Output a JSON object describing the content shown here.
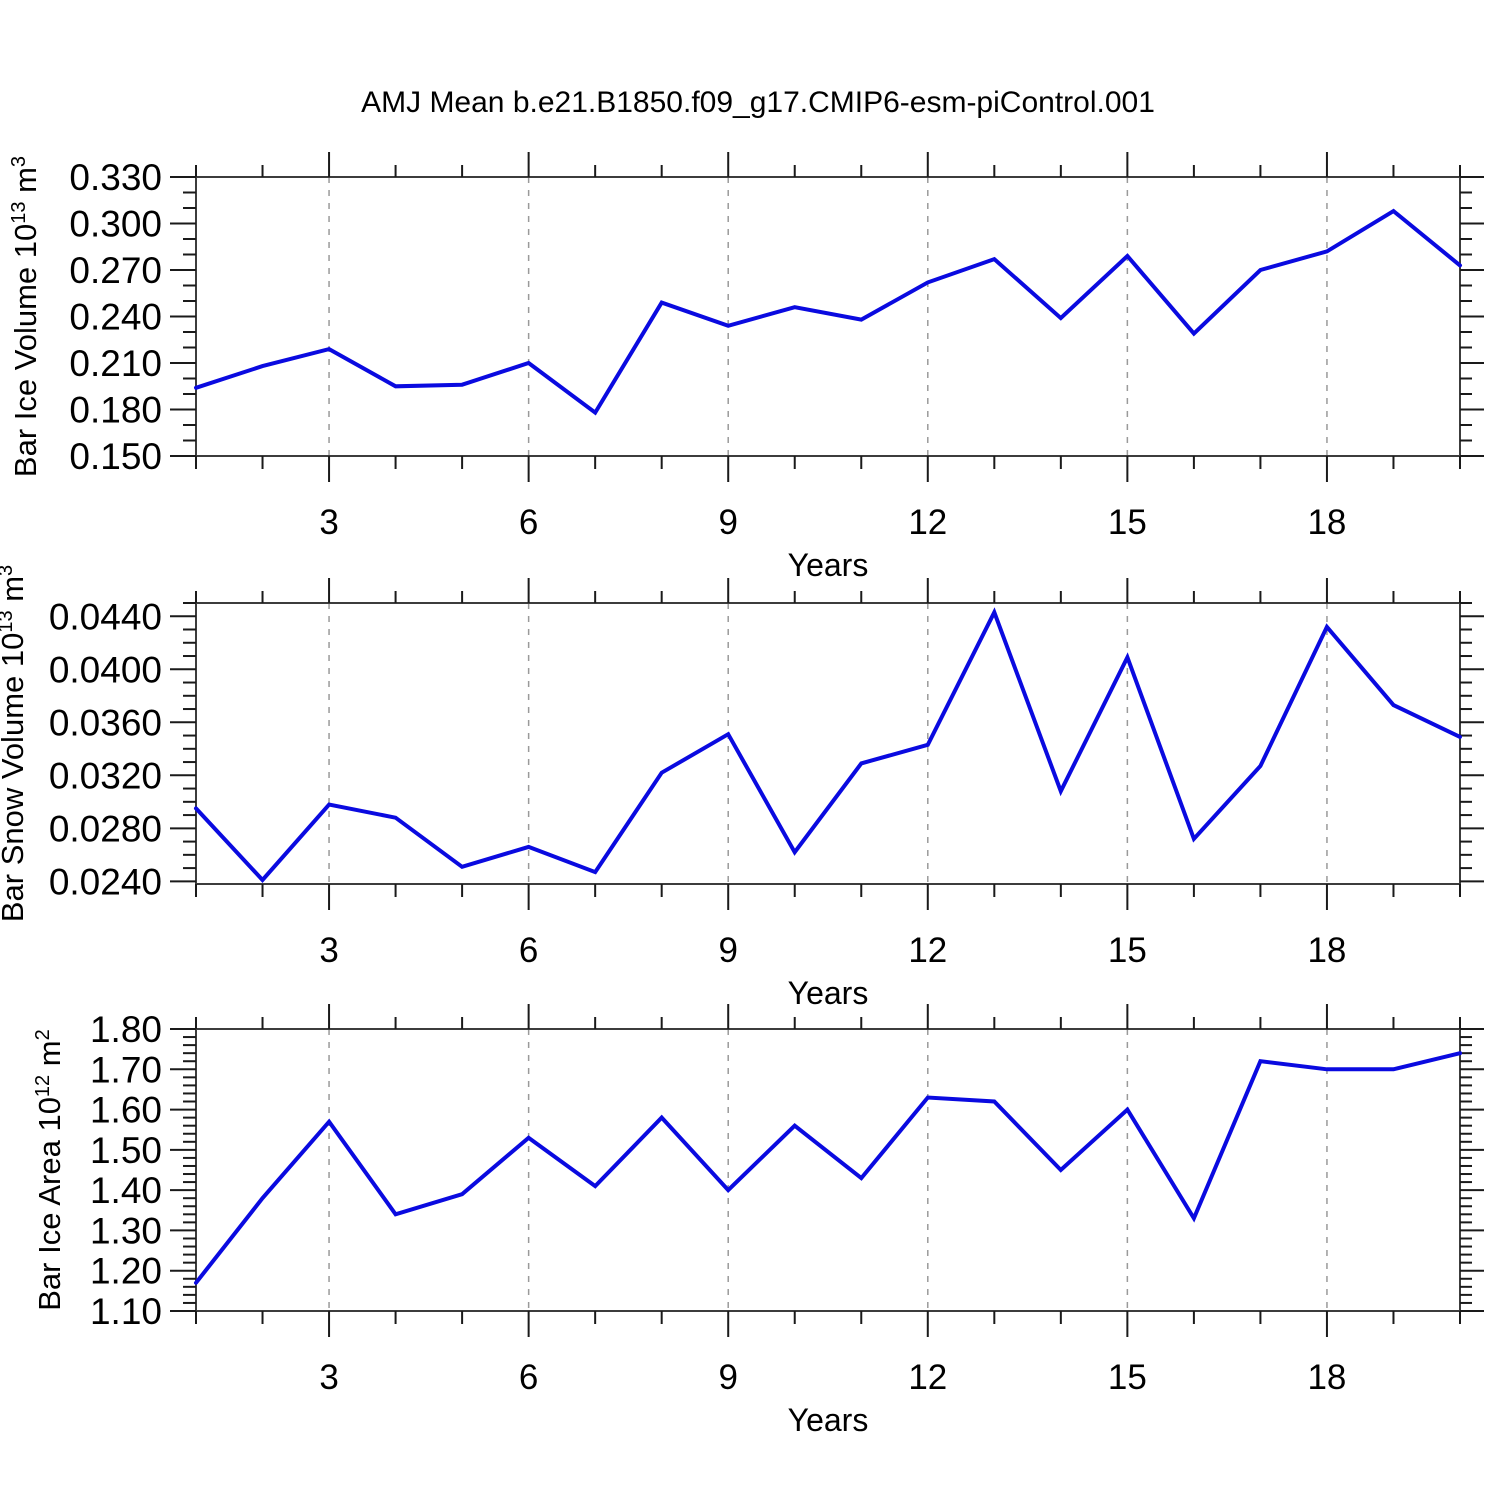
{
  "title": "AMJ Mean b.e21.B1850.f09_g17.CMIP6-esm-piControl.001",
  "accent_color": "#0a0ae0",
  "frame_color": "#3c3c3c",
  "tick_color": "#1a1a1a",
  "grid_color": "#9a9a9a",
  "chart_data": [
    {
      "type": "line",
      "name": "ice-volume",
      "ylabel": "Bar Ice Volume 10¹³ m³",
      "ylabel_parts": [
        {
          "t": "Bar Ice Volume 10"
        },
        {
          "t": "13",
          "sup": true
        },
        {
          "t": " m"
        },
        {
          "t": "3",
          "sup": true
        }
      ],
      "xlabel": "Years",
      "x": [
        1,
        2,
        3,
        4,
        5,
        6,
        7,
        8,
        9,
        10,
        11,
        12,
        13,
        14,
        15,
        16,
        17,
        18,
        19,
        20
      ],
      "values": [
        0.194,
        0.208,
        0.219,
        0.195,
        0.196,
        0.21,
        0.178,
        0.249,
        0.234,
        0.246,
        0.238,
        0.262,
        0.277,
        0.239,
        0.279,
        0.229,
        0.27,
        0.282,
        0.308,
        0.273
      ],
      "xlim": [
        1,
        20
      ],
      "ylim": [
        0.15,
        0.33
      ],
      "xticks": [
        3,
        6,
        9,
        12,
        15,
        18
      ],
      "xtick_labels": [
        "3",
        "6",
        "9",
        "12",
        "15",
        "18"
      ],
      "xminor_step": 1,
      "yticks": [
        0.15,
        0.18,
        0.21,
        0.24,
        0.27,
        0.3,
        0.33
      ],
      "ytick_labels": [
        "0.150",
        "0.180",
        "0.210",
        "0.240",
        "0.270",
        "0.300",
        "0.330"
      ],
      "yminor_step": 0.01,
      "grid": "vertical-dashed",
      "legend": "none",
      "line_color": "#0a0ae0"
    },
    {
      "type": "line",
      "name": "snow-volume",
      "ylabel": "Bar Snow Volume 10¹³ m³",
      "ylabel_parts": [
        {
          "t": "Bar Snow Volume 10"
        },
        {
          "t": "13",
          "sup": true
        },
        {
          "t": " m"
        },
        {
          "t": "3",
          "sup": true
        }
      ],
      "xlabel": "Years",
      "x": [
        1,
        2,
        3,
        4,
        5,
        6,
        7,
        8,
        9,
        10,
        11,
        12,
        13,
        14,
        15,
        16,
        17,
        18,
        19,
        20
      ],
      "values": [
        0.0295,
        0.0241,
        0.0298,
        0.0288,
        0.0251,
        0.0266,
        0.0247,
        0.0322,
        0.0351,
        0.0262,
        0.0329,
        0.0343,
        0.0443,
        0.0308,
        0.0409,
        0.0272,
        0.0327,
        0.0432,
        0.0373,
        0.0349
      ],
      "xlim": [
        1,
        20
      ],
      "ylim": [
        0.0238,
        0.045
      ],
      "xticks": [
        3,
        6,
        9,
        12,
        15,
        18
      ],
      "xtick_labels": [
        "3",
        "6",
        "9",
        "12",
        "15",
        "18"
      ],
      "xminor_step": 1,
      "yticks": [
        0.024,
        0.028,
        0.032,
        0.036,
        0.04,
        0.044
      ],
      "ytick_labels": [
        "0.0240",
        "0.0280",
        "0.0320",
        "0.0360",
        "0.0400",
        "0.0440"
      ],
      "yminor_step": 0.001,
      "grid": "vertical-dashed",
      "legend": "none",
      "line_color": "#0a0ae0"
    },
    {
      "type": "line",
      "name": "ice-area",
      "ylabel": "Bar Ice Area 10¹² m²",
      "ylabel_parts": [
        {
          "t": "Bar Ice Area 10"
        },
        {
          "t": "12",
          "sup": true
        },
        {
          "t": " m"
        },
        {
          "t": "2",
          "sup": true
        }
      ],
      "xlabel": "Years",
      "x": [
        1,
        2,
        3,
        4,
        5,
        6,
        7,
        8,
        9,
        10,
        11,
        12,
        13,
        14,
        15,
        16,
        17,
        18,
        19,
        20
      ],
      "values": [
        1.17,
        1.38,
        1.57,
        1.34,
        1.39,
        1.53,
        1.41,
        1.58,
        1.4,
        1.56,
        1.43,
        1.63,
        1.62,
        1.45,
        1.6,
        1.33,
        1.72,
        1.7,
        1.7,
        1.74
      ],
      "xlim": [
        1,
        20
      ],
      "ylim": [
        1.1,
        1.8
      ],
      "xticks": [
        3,
        6,
        9,
        12,
        15,
        18
      ],
      "xtick_labels": [
        "3",
        "6",
        "9",
        "12",
        "15",
        "18"
      ],
      "xminor_step": 1,
      "yticks": [
        1.1,
        1.2,
        1.3,
        1.4,
        1.5,
        1.6,
        1.7,
        1.8
      ],
      "ytick_labels": [
        "1.10",
        "1.20",
        "1.30",
        "1.40",
        "1.50",
        "1.60",
        "1.70",
        "1.80"
      ],
      "yminor_step": 0.02,
      "grid": "vertical-dashed",
      "legend": "none",
      "line_color": "#0a0ae0"
    }
  ]
}
